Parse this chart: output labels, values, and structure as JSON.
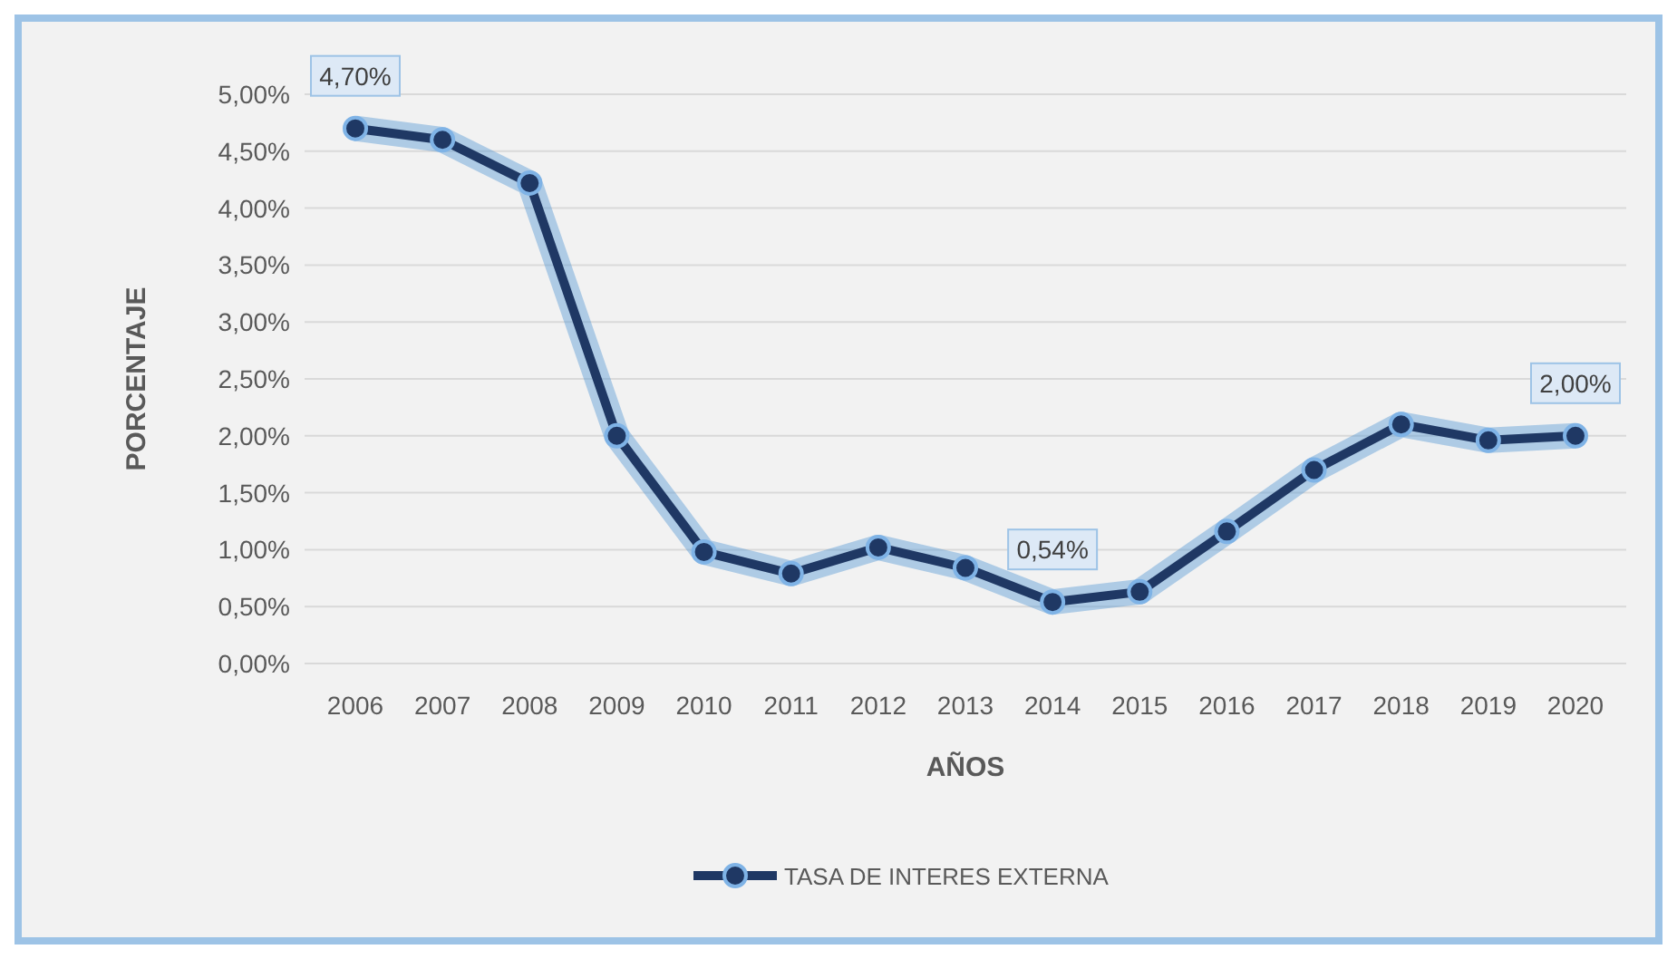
{
  "chart_data": {
    "type": "line",
    "xlabel": "AÑOS",
    "ylabel": "PORCENTAJE",
    "categories": [
      "2006",
      "2007",
      "2008",
      "2009",
      "2010",
      "2011",
      "2012",
      "2013",
      "2014",
      "2015",
      "2016",
      "2017",
      "2018",
      "2019",
      "2020"
    ],
    "series": [
      {
        "name": "TASA DE INTERES EXTERNA",
        "color": "#1f3864",
        "values": [
          4.7,
          4.6,
          4.22,
          2.0,
          0.98,
          0.79,
          1.02,
          0.84,
          0.54,
          0.63,
          1.16,
          1.7,
          2.1,
          1.96,
          2.0
        ],
        "value_labels": [
          "4,70%",
          null,
          null,
          null,
          null,
          null,
          null,
          null,
          "0,54%",
          null,
          null,
          null,
          null,
          null,
          "2,00%"
        ]
      }
    ],
    "ylim": [
      0,
      5
    ],
    "yticks": [
      {
        "value": 0,
        "label": "0,00%"
      },
      {
        "value": 0.5,
        "label": "0,50%"
      },
      {
        "value": 1,
        "label": "1,00%"
      },
      {
        "value": 1.5,
        "label": "1,50%"
      },
      {
        "value": 2,
        "label": "2,00%"
      },
      {
        "value": 2.5,
        "label": "2,50%"
      },
      {
        "value": 3,
        "label": "3,00%"
      },
      {
        "value": 3.5,
        "label": "3,50%"
      },
      {
        "value": 4,
        "label": "4,00%"
      },
      {
        "value": 4.5,
        "label": "4,50%"
      },
      {
        "value": 5,
        "label": "5,00%"
      }
    ],
    "grid": "y",
    "legend": "bottom",
    "marker": "circle",
    "line_style": "solid"
  }
}
